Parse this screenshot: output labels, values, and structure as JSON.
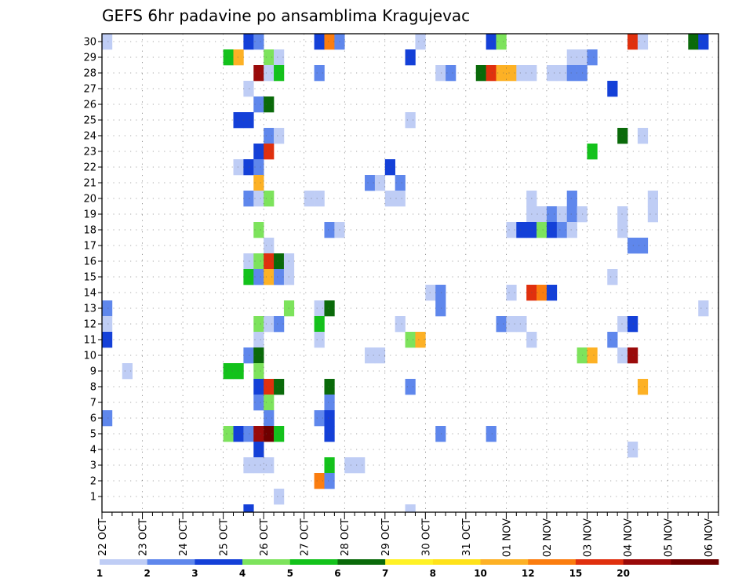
{
  "chart_data": {
    "type": "heatmap",
    "title": "GEFS 6hr padavine po ansamblima Kragujevac",
    "xlabel": "",
    "ylabel": "",
    "x_tick_labels": [
      "22 OCT",
      "23 OCT",
      "24 OCT",
      "25 OCT",
      "26 OCT",
      "27 OCT",
      "28 OCT",
      "29 OCT",
      "30 OCT",
      "31 OCT",
      "01 NOV",
      "02 NOV",
      "03 NOV",
      "04 NOV",
      "05 NOV",
      "06 NOV"
    ],
    "y_tick_labels": [
      "1",
      "2",
      "3",
      "4",
      "5",
      "6",
      "7",
      "8",
      "9",
      "10",
      "11",
      "12",
      "13",
      "14",
      "15",
      "16",
      "17",
      "18",
      "19",
      "20",
      "21",
      "22",
      "23",
      "24",
      "25",
      "26",
      "27",
      "28",
      "29",
      "30"
    ],
    "x_range_steps": [
      0,
      61
    ],
    "y_range_members": [
      0,
      30
    ],
    "grid": true,
    "colorbar": {
      "levels": [
        "1",
        "2",
        "3",
        "4",
        "5",
        "6",
        "7",
        "8",
        "10",
        "12",
        "15",
        "20"
      ],
      "colors": [
        "#bfcdf5",
        "#5f87ec",
        "#1440d8",
        "#7de35c",
        "#13c21b",
        "#0a6a0a",
        "#fff226",
        "#ffe21a",
        "#fdb125",
        "#fb7d0f",
        "#e0300e",
        "#9a0a0a",
        "#6e0000"
      ]
    },
    "cells": [
      [
        30,
        1,
        0
      ],
      [
        30,
        15,
        2
      ],
      [
        30,
        16,
        1
      ],
      [
        30,
        22,
        2
      ],
      [
        30,
        23,
        9
      ],
      [
        30,
        24,
        1
      ],
      [
        30,
        32,
        0
      ],
      [
        30,
        39,
        2
      ],
      [
        30,
        40,
        3
      ],
      [
        30,
        53,
        10
      ],
      [
        30,
        54,
        0
      ],
      [
        30,
        59,
        5
      ],
      [
        30,
        60,
        2
      ],
      [
        29,
        13,
        4
      ],
      [
        29,
        14,
        8
      ],
      [
        29,
        17,
        3
      ],
      [
        29,
        18,
        0
      ],
      [
        29,
        31,
        2
      ],
      [
        29,
        47,
        0
      ],
      [
        29,
        48,
        0
      ],
      [
        29,
        49,
        1
      ],
      [
        28,
        16,
        11
      ],
      [
        28,
        17,
        0
      ],
      [
        28,
        18,
        4
      ],
      [
        28,
        22,
        1
      ],
      [
        28,
        34,
        0
      ],
      [
        28,
        35,
        1
      ],
      [
        28,
        38,
        5
      ],
      [
        28,
        39,
        10
      ],
      [
        28,
        40,
        8
      ],
      [
        28,
        41,
        8
      ],
      [
        28,
        42,
        0
      ],
      [
        28,
        43,
        0
      ],
      [
        28,
        45,
        0
      ],
      [
        28,
        46,
        0
      ],
      [
        28,
        47,
        1
      ],
      [
        28,
        48,
        1
      ],
      [
        27,
        15,
        0
      ],
      [
        27,
        51,
        2
      ],
      [
        26,
        16,
        1
      ],
      [
        26,
        17,
        5
      ],
      [
        25,
        14,
        2
      ],
      [
        25,
        15,
        2
      ],
      [
        25,
        31,
        0
      ],
      [
        24,
        17,
        1
      ],
      [
        24,
        18,
        0
      ],
      [
        24,
        52,
        5
      ],
      [
        24,
        54,
        0
      ],
      [
        23,
        16,
        2
      ],
      [
        23,
        17,
        10
      ],
      [
        23,
        49,
        4
      ],
      [
        22,
        14,
        0
      ],
      [
        22,
        15,
        2
      ],
      [
        22,
        16,
        1
      ],
      [
        22,
        29,
        2
      ],
      [
        21,
        16,
        8
      ],
      [
        21,
        27,
        1
      ],
      [
        21,
        28,
        0
      ],
      [
        21,
        30,
        1
      ],
      [
        20,
        15,
        1
      ],
      [
        20,
        16,
        0
      ],
      [
        20,
        17,
        3
      ],
      [
        20,
        21,
        0
      ],
      [
        20,
        22,
        0
      ],
      [
        20,
        29,
        0
      ],
      [
        20,
        30,
        0
      ],
      [
        20,
        43,
        0
      ],
      [
        20,
        47,
        1
      ],
      [
        20,
        55,
        0
      ],
      [
        19,
        43,
        0
      ],
      [
        19,
        44,
        0
      ],
      [
        19,
        45,
        1
      ],
      [
        19,
        46,
        0
      ],
      [
        19,
        47,
        1
      ],
      [
        19,
        48,
        0
      ],
      [
        19,
        52,
        0
      ],
      [
        19,
        55,
        0
      ],
      [
        18,
        16,
        3
      ],
      [
        18,
        23,
        1
      ],
      [
        18,
        24,
        0
      ],
      [
        18,
        41,
        0
      ],
      [
        18,
        42,
        2
      ],
      [
        18,
        43,
        2
      ],
      [
        18,
        44,
        3
      ],
      [
        18,
        45,
        2
      ],
      [
        18,
        46,
        1
      ],
      [
        18,
        47,
        0
      ],
      [
        18,
        52,
        0
      ],
      [
        17,
        17,
        0
      ],
      [
        17,
        53,
        1
      ],
      [
        17,
        54,
        1
      ],
      [
        16,
        15,
        0
      ],
      [
        16,
        16,
        3
      ],
      [
        16,
        17,
        10
      ],
      [
        16,
        18,
        5
      ],
      [
        16,
        19,
        0
      ],
      [
        15,
        15,
        4
      ],
      [
        15,
        16,
        1
      ],
      [
        15,
        17,
        8
      ],
      [
        15,
        18,
        1
      ],
      [
        15,
        19,
        0
      ],
      [
        15,
        51,
        0
      ],
      [
        14,
        33,
        0
      ],
      [
        14,
        34,
        1
      ],
      [
        14,
        41,
        0
      ],
      [
        14,
        43,
        10
      ],
      [
        14,
        44,
        9
      ],
      [
        14,
        45,
        2
      ],
      [
        13,
        1,
        1
      ],
      [
        13,
        19,
        3
      ],
      [
        13,
        22,
        0
      ],
      [
        13,
        23,
        5
      ],
      [
        13,
        34,
        1
      ],
      [
        13,
        60,
        0
      ],
      [
        12,
        1,
        0
      ],
      [
        12,
        16,
        3
      ],
      [
        12,
        17,
        0
      ],
      [
        12,
        18,
        1
      ],
      [
        12,
        22,
        4
      ],
      [
        12,
        30,
        0
      ],
      [
        12,
        40,
        1
      ],
      [
        12,
        41,
        0
      ],
      [
        12,
        42,
        0
      ],
      [
        12,
        52,
        0
      ],
      [
        12,
        53,
        2
      ],
      [
        11,
        1,
        2
      ],
      [
        11,
        16,
        0
      ],
      [
        11,
        22,
        0
      ],
      [
        11,
        31,
        3
      ],
      [
        11,
        32,
        8
      ],
      [
        11,
        43,
        0
      ],
      [
        11,
        51,
        1
      ],
      [
        10,
        15,
        1
      ],
      [
        10,
        16,
        5
      ],
      [
        10,
        27,
        0
      ],
      [
        10,
        28,
        0
      ],
      [
        10,
        48,
        3
      ],
      [
        10,
        49,
        8
      ],
      [
        10,
        52,
        0
      ],
      [
        10,
        53,
        11
      ],
      [
        9,
        3,
        0
      ],
      [
        9,
        13,
        4
      ],
      [
        9,
        14,
        4
      ],
      [
        9,
        16,
        3
      ],
      [
        8,
        16,
        2
      ],
      [
        8,
        17,
        10
      ],
      [
        8,
        18,
        5
      ],
      [
        8,
        23,
        5
      ],
      [
        8,
        31,
        1
      ],
      [
        8,
        54,
        8
      ],
      [
        7,
        16,
        1
      ],
      [
        7,
        17,
        3
      ],
      [
        7,
        23,
        1
      ],
      [
        6,
        1,
        1
      ],
      [
        6,
        17,
        1
      ],
      [
        6,
        22,
        1
      ],
      [
        6,
        23,
        2
      ],
      [
        5,
        13,
        3
      ],
      [
        5,
        14,
        2
      ],
      [
        5,
        15,
        1
      ],
      [
        5,
        16,
        11
      ],
      [
        5,
        17,
        12
      ],
      [
        5,
        18,
        4
      ],
      [
        5,
        23,
        2
      ],
      [
        5,
        34,
        1
      ],
      [
        5,
        39,
        1
      ],
      [
        4,
        16,
        2
      ],
      [
        4,
        53,
        0
      ],
      [
        3,
        15,
        0
      ],
      [
        3,
        16,
        0
      ],
      [
        3,
        17,
        0
      ],
      [
        3,
        23,
        4
      ],
      [
        3,
        25,
        0
      ],
      [
        3,
        26,
        0
      ],
      [
        2,
        22,
        9
      ],
      [
        2,
        23,
        1
      ],
      [
        1,
        18,
        0
      ],
      [
        0,
        15,
        2
      ],
      [
        0,
        31,
        0
      ]
    ]
  }
}
